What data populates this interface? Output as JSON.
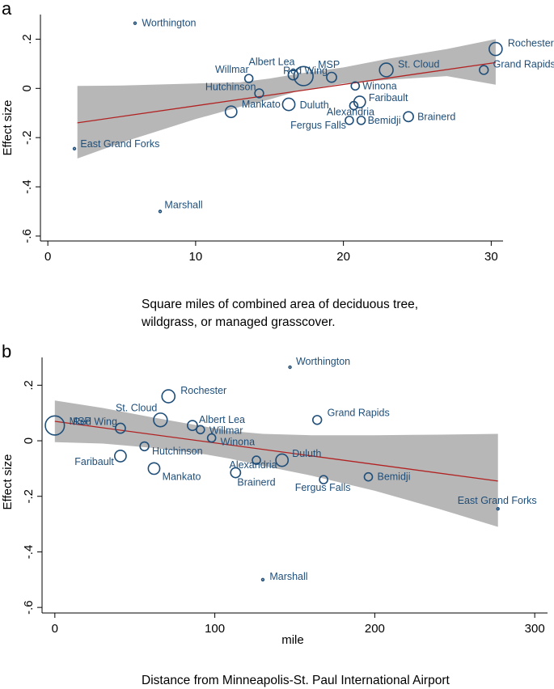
{
  "chart_data": [
    {
      "type": "scatter",
      "panel": "a",
      "title": "",
      "xlabel_lines": [
        "Square miles of combined area of deciduous tree,",
        "wildgrass, or managed grasscover."
      ],
      "ylabel": "Effect size",
      "xlim": [
        -0.5,
        30.8
      ],
      "ylim": [
        -0.62,
        0.3
      ],
      "xticks": [
        0,
        10,
        20,
        30
      ],
      "xtick_labels": [
        "0",
        "10",
        "20",
        "30"
      ],
      "yticks": [
        0.2,
        0,
        -0.2,
        -0.4,
        -0.6
      ],
      "ytick_labels": [
        ".2",
        "0",
        "-.2",
        "-.4",
        "-.6"
      ],
      "fit": {
        "x": [
          2,
          30.3
        ],
        "y": [
          -0.14,
          0.105
        ]
      },
      "ci": {
        "x": [
          2,
          5,
          10,
          13,
          15,
          17,
          20,
          23,
          27,
          30.3
        ],
        "lower": [
          -0.285,
          -0.22,
          -0.125,
          -0.075,
          -0.045,
          -0.01,
          0.02,
          0.035,
          0.05,
          0.015
        ],
        "upper": [
          0.01,
          0.012,
          0.02,
          0.025,
          0.04,
          0.06,
          0.085,
          0.12,
          0.16,
          0.2
        ]
      },
      "points": [
        {
          "label": "Worthington",
          "x": 5.9,
          "y": 0.265,
          "weight": 1
        },
        {
          "label": "Rochester",
          "x": 30.3,
          "y": 0.16,
          "weight": 4
        },
        {
          "label": "Grand Rapids",
          "x": 29.5,
          "y": 0.075,
          "weight": 1.5
        },
        {
          "label": "St. Cloud",
          "x": 22.9,
          "y": 0.075,
          "weight": 4.5
        },
        {
          "label": "Red Wing",
          "x": 19.2,
          "y": 0.045,
          "weight": 2
        },
        {
          "label": "MSP",
          "x": 17.3,
          "y": 0.05,
          "weight": 10
        },
        {
          "label": "Albert Lea",
          "x": 16.6,
          "y": 0.055,
          "weight": 2
        },
        {
          "label": "Willmar",
          "x": 13.6,
          "y": 0.04,
          "weight": 1.2
        },
        {
          "label": "Winona",
          "x": 20.8,
          "y": 0.01,
          "weight": 1.2
        },
        {
          "label": "Hutchinson",
          "x": 14.3,
          "y": -0.02,
          "weight": 1.5
        },
        {
          "label": "Faribault",
          "x": 21.1,
          "y": -0.055,
          "weight": 3
        },
        {
          "label": "Alexandria",
          "x": 20.7,
          "y": -0.07,
          "weight": 1.2
        },
        {
          "label": "Duluth",
          "x": 16.3,
          "y": -0.065,
          "weight": 3.5
        },
        {
          "label": "Mankato",
          "x": 12.4,
          "y": -0.095,
          "weight": 3
        },
        {
          "label": "Brainerd",
          "x": 24.4,
          "y": -0.115,
          "weight": 2
        },
        {
          "label": "Fergus Falls",
          "x": 20.4,
          "y": -0.13,
          "weight": 1.2
        },
        {
          "label": "Bemidji",
          "x": 21.2,
          "y": -0.13,
          "weight": 1.2
        },
        {
          "label": "East Grand Forks",
          "x": 1.8,
          "y": -0.245,
          "weight": 1
        },
        {
          "label": "Marshall",
          "x": 7.6,
          "y": -0.5,
          "weight": 1
        }
      ]
    },
    {
      "type": "scatter",
      "panel": "b",
      "title": "",
      "xlabel": "mile",
      "caption": "Distance from Minneapolis-St. Paul International Airport",
      "ylabel": "Effect size",
      "xlim": [
        -8,
        308
      ],
      "ylim": [
        -0.62,
        0.3
      ],
      "xticks": [
        0,
        100,
        200,
        300
      ],
      "xtick_labels": [
        "0",
        "100",
        "200",
        "300"
      ],
      "yticks": [
        0.2,
        0,
        -0.2,
        -0.4,
        -0.6
      ],
      "ytick_labels": [
        ".2",
        "0",
        "-.2",
        "-.4",
        "-.6"
      ],
      "fit": {
        "x": [
          0,
          277
        ],
        "y": [
          0.07,
          -0.145
        ]
      },
      "ci": {
        "x": [
          0,
          30,
          60,
          90,
          110,
          130,
          160,
          200,
          240,
          277
        ],
        "lower": [
          -0.005,
          -0.01,
          -0.025,
          -0.045,
          -0.065,
          -0.09,
          -0.125,
          -0.18,
          -0.245,
          -0.31
        ],
        "upper": [
          0.145,
          0.118,
          0.085,
          0.055,
          0.035,
          0.025,
          0.02,
          0.02,
          0.022,
          0.025
        ]
      },
      "points": [
        {
          "label": "Worthington",
          "x": 147,
          "y": 0.265,
          "weight": 1
        },
        {
          "label": "Rochester",
          "x": 71,
          "y": 0.16,
          "weight": 4
        },
        {
          "label": "St. Cloud",
          "x": 66,
          "y": 0.075,
          "weight": 4.5
        },
        {
          "label": "Grand Rapids",
          "x": 164,
          "y": 0.075,
          "weight": 1.5
        },
        {
          "label": "MSP",
          "x": 0,
          "y": 0.055,
          "weight": 10
        },
        {
          "label": "Red Wing",
          "x": 41,
          "y": 0.045,
          "weight": 2
        },
        {
          "label": "Albert Lea",
          "x": 86,
          "y": 0.055,
          "weight": 2
        },
        {
          "label": "Willmar",
          "x": 91,
          "y": 0.04,
          "weight": 1.2
        },
        {
          "label": "Winona",
          "x": 98,
          "y": 0.01,
          "weight": 1.2
        },
        {
          "label": "Hutchinson",
          "x": 56,
          "y": -0.02,
          "weight": 1.5
        },
        {
          "label": "Duluth",
          "x": 142,
          "y": -0.07,
          "weight": 3.5
        },
        {
          "label": "Alexandria",
          "x": 126,
          "y": -0.07,
          "weight": 1.2
        },
        {
          "label": "Faribault",
          "x": 41,
          "y": -0.055,
          "weight": 3
        },
        {
          "label": "Mankato",
          "x": 62,
          "y": -0.1,
          "weight": 3
        },
        {
          "label": "Brainerd",
          "x": 113,
          "y": -0.115,
          "weight": 2
        },
        {
          "label": "Fergus Falls",
          "x": 168,
          "y": -0.14,
          "weight": 1.2
        },
        {
          "label": "Bemidji",
          "x": 196,
          "y": -0.13,
          "weight": 1.2
        },
        {
          "label": "East Grand Forks",
          "x": 277,
          "y": -0.245,
          "weight": 1
        },
        {
          "label": "Marshall",
          "x": 130,
          "y": -0.5,
          "weight": 1
        }
      ]
    }
  ],
  "colors": {
    "point": "#1f4e79",
    "label": "#1f4e79",
    "fit_line": "#b22222",
    "ci_band": "#b3b3b3"
  }
}
